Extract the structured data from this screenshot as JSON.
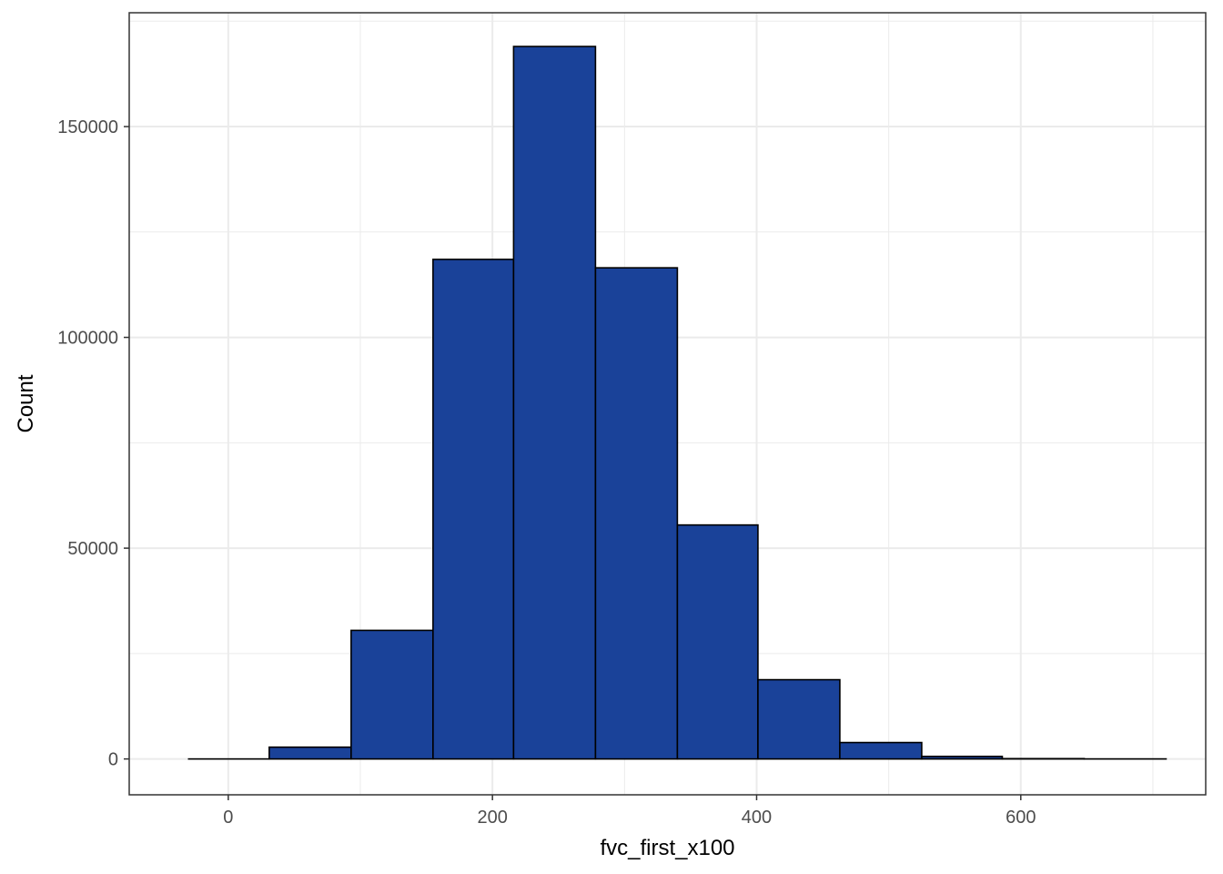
{
  "chart_data": {
    "type": "bar",
    "title": "",
    "xlabel": "fvc_first_x100",
    "ylabel": "Count",
    "xlim": [
      -75,
      740
    ],
    "ylim": [
      -8500,
      177000
    ],
    "x_ticks": [
      0,
      200,
      400,
      600
    ],
    "x_tick_labels": [
      "0",
      "200",
      "400",
      "600"
    ],
    "y_ticks": [
      0,
      50000,
      100000,
      150000
    ],
    "y_tick_labels": [
      "0",
      "50000",
      "100000",
      "150000"
    ],
    "grid": true,
    "legend": "none",
    "bins": [
      {
        "x0": -30,
        "x1": 31,
        "count": 0
      },
      {
        "x0": 31,
        "x1": 93,
        "count": 2800
      },
      {
        "x0": 93,
        "x1": 155,
        "count": 30500
      },
      {
        "x0": 155,
        "x1": 216,
        "count": 118500
      },
      {
        "x0": 216,
        "x1": 278,
        "count": 169000
      },
      {
        "x0": 278,
        "x1": 340,
        "count": 116500
      },
      {
        "x0": 340,
        "x1": 401,
        "count": 55500
      },
      {
        "x0": 401,
        "x1": 463,
        "count": 18800
      },
      {
        "x0": 463,
        "x1": 525,
        "count": 3900
      },
      {
        "x0": 525,
        "x1": 586,
        "count": 600
      },
      {
        "x0": 586,
        "x1": 648,
        "count": 80
      },
      {
        "x0": 648,
        "x1": 710,
        "count": 10
      }
    ],
    "colors": {
      "fill": "#1a4299",
      "stroke": "#000000",
      "grid": "#ebebeb",
      "panel_border": "#333333"
    }
  }
}
